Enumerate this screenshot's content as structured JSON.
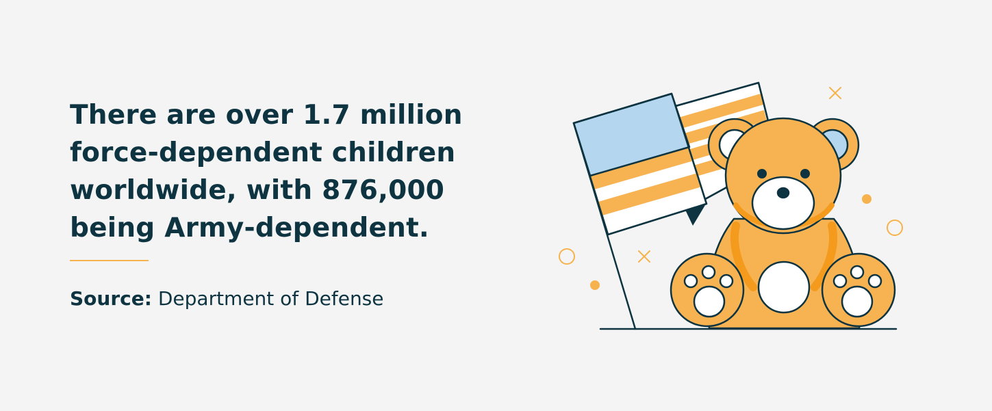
{
  "headline": {
    "lines": [
      "There are over 1.7 million",
      "force-dependent children",
      "worldwide, with 876,000",
      "being Army-dependent."
    ]
  },
  "source": {
    "label": "Source:",
    "value": "Department of Defense"
  },
  "illustration": {
    "subject": "teddy-bear-with-flag",
    "colors": {
      "outline": "#0d3440",
      "bear": "#f7b252",
      "bear_shadow": "#f49a1d",
      "flag_blue": "#b5d6ef",
      "white": "#ffffff",
      "accent": "#f6b34d"
    }
  }
}
